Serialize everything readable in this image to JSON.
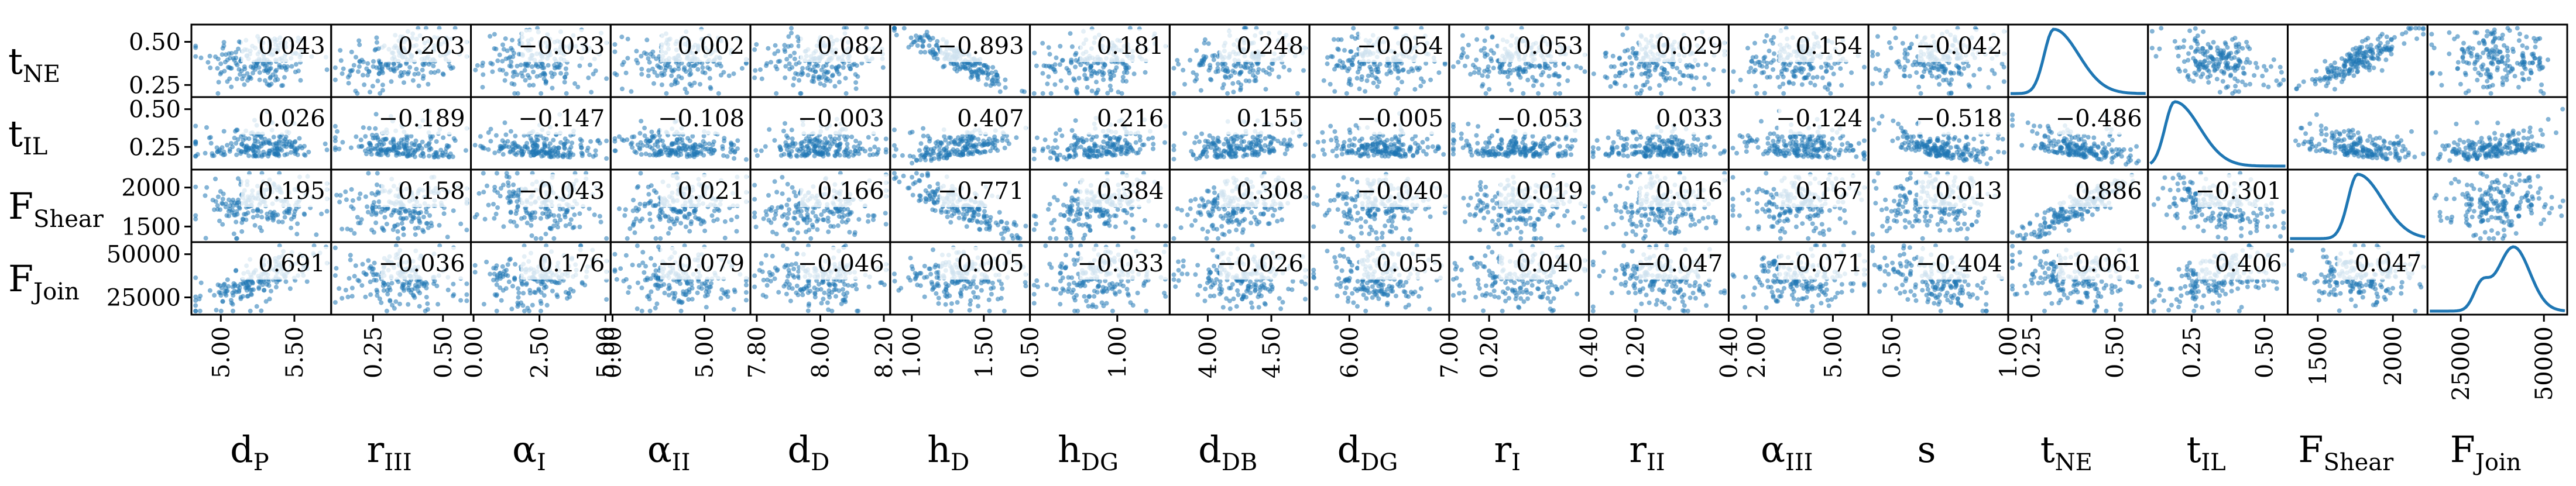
{
  "chart_data": {
    "type": "scatter",
    "kind": "scatter-matrix",
    "colors": {
      "points": "#1f77b4",
      "kde": "#1f77b4",
      "frame": "#000000",
      "label_box": "#ffffff"
    },
    "x_vars": [
      {
        "key": "dP",
        "base": "d",
        "sub": "P",
        "ticks": [
          5.0,
          5.5
        ],
        "tick_labels": [
          "5.00",
          "5.50"
        ],
        "range": [
          4.8,
          5.75
        ]
      },
      {
        "key": "rIII",
        "base": "r",
        "sub": "III",
        "ticks": [
          0.25,
          0.5
        ],
        "tick_labels": [
          "0.25",
          "0.50"
        ],
        "range": [
          0.1,
          0.6
        ]
      },
      {
        "key": "aI",
        "base": "α",
        "sub": "I",
        "ticks": [
          0.0,
          2.5,
          5.0
        ],
        "tick_labels": [
          "0.00",
          "2.50",
          "5.00"
        ],
        "range": [
          -0.1,
          5.2
        ]
      },
      {
        "key": "aII",
        "base": "α",
        "sub": "II",
        "ticks": [
          0.0,
          5.0
        ],
        "tick_labels": [
          "0.00",
          "5.00"
        ],
        "range": [
          -0.1,
          7.5
        ]
      },
      {
        "key": "dD",
        "base": "d",
        "sub": "D",
        "ticks": [
          7.8,
          8.0,
          8.2
        ],
        "tick_labels": [
          "7.80",
          "8.00",
          "8.20"
        ],
        "range": [
          7.78,
          8.22
        ]
      },
      {
        "key": "hD",
        "base": "h",
        "sub": "D",
        "ticks": [
          1.0,
          1.5
        ],
        "tick_labels": [
          "1.00",
          "1.50"
        ],
        "range": [
          0.85,
          1.82
        ]
      },
      {
        "key": "hDG",
        "base": "h",
        "sub": "DG",
        "ticks": [
          0.5,
          1.0
        ],
        "tick_labels": [
          "0.50",
          "1.00"
        ],
        "range": [
          0.5,
          1.3
        ]
      },
      {
        "key": "dDB",
        "base": "d",
        "sub": "DB",
        "ticks": [
          4.0,
          4.5
        ],
        "tick_labels": [
          "4.00",
          "4.50"
        ],
        "range": [
          3.7,
          4.8
        ]
      },
      {
        "key": "dDG",
        "base": "d",
        "sub": "DG",
        "ticks": [
          6.0,
          7.0
        ],
        "tick_labels": [
          "6.00",
          "7.00"
        ],
        "range": [
          5.6,
          7.0
        ]
      },
      {
        "key": "rI",
        "base": "r",
        "sub": "I",
        "ticks": [
          0.2,
          0.4
        ],
        "tick_labels": [
          "0.20",
          "0.40"
        ],
        "range": [
          0.12,
          0.4
        ]
      },
      {
        "key": "rII",
        "base": "r",
        "sub": "II",
        "ticks": [
          0.2,
          0.4
        ],
        "tick_labels": [
          "0.20",
          "0.40"
        ],
        "range": [
          0.1,
          0.4
        ]
      },
      {
        "key": "aIII",
        "base": "α",
        "sub": "III",
        "ticks": [
          2.0,
          5.0
        ],
        "tick_labels": [
          "2.00",
          "5.00"
        ],
        "range": [
          0.9,
          6.4
        ]
      },
      {
        "key": "s",
        "base": "s",
        "sub": "",
        "ticks": [
          0.5,
          1.0
        ],
        "tick_labels": [
          "0.50",
          "1.00"
        ],
        "range": [
          0.4,
          1.0
        ]
      },
      {
        "key": "tNE",
        "base": "t",
        "sub": "NE",
        "ticks": [
          0.25,
          0.5
        ],
        "tick_labels": [
          "0.25",
          "0.50"
        ],
        "range": [
          0.18,
          0.6
        ]
      },
      {
        "key": "tIL",
        "base": "t",
        "sub": "IL",
        "ticks": [
          0.25,
          0.5
        ],
        "tick_labels": [
          "0.25",
          "0.50"
        ],
        "range": [
          0.1,
          0.58
        ]
      },
      {
        "key": "FShear",
        "base": "F",
        "sub": "Shear",
        "ticks": [
          1500,
          2000
        ],
        "tick_labels": [
          "1500",
          "2000"
        ],
        "range": [
          1300,
          2230
        ]
      },
      {
        "key": "FJoin",
        "base": "F",
        "sub": "Join",
        "ticks": [
          25000,
          50000
        ],
        "tick_labels": [
          "25000",
          "50000"
        ],
        "range": [
          15000,
          57000
        ]
      }
    ],
    "y_vars": [
      {
        "key": "tNE",
        "base": "t",
        "sub": "NE",
        "ticks": [
          0.25,
          0.5
        ],
        "tick_labels": [
          "0.25",
          "0.50"
        ],
        "range": [
          0.18,
          0.6
        ]
      },
      {
        "key": "tIL",
        "base": "t",
        "sub": "IL",
        "ticks": [
          0.25,
          0.5
        ],
        "tick_labels": [
          "0.25",
          "0.50"
        ],
        "range": [
          0.1,
          0.58
        ]
      },
      {
        "key": "FShear",
        "base": "F",
        "sub": "Shear",
        "ticks": [
          1500,
          2000
        ],
        "tick_labels": [
          "1500",
          "2000"
        ],
        "range": [
          1300,
          2230
        ]
      },
      {
        "key": "FJoin",
        "base": "F",
        "sub": "Join",
        "ticks": [
          25000,
          50000
        ],
        "tick_labels": [
          "25000",
          "50000"
        ],
        "range": [
          15000,
          57000
        ]
      }
    ],
    "correlations": [
      [
        "0.043",
        "0.203",
        "−0.033",
        "0.002",
        "0.082",
        "−0.893",
        "0.181",
        "0.248",
        "−0.054",
        "0.053",
        "0.029",
        "0.154",
        "−0.042",
        null,
        "",
        "",
        ""
      ],
      [
        "0.026",
        "−0.189",
        "−0.147",
        "−0.108",
        "−0.003",
        "0.407",
        "0.216",
        "0.155",
        "−0.005",
        "−0.053",
        "0.033",
        "−0.124",
        "−0.518",
        "−0.486",
        null,
        "",
        ""
      ],
      [
        "0.195",
        "0.158",
        "−0.043",
        "0.021",
        "0.166",
        "−0.771",
        "0.384",
        "0.308",
        "−0.040",
        "0.019",
        "0.016",
        "0.167",
        "0.013",
        "0.886",
        "−0.301",
        null,
        ""
      ],
      [
        "0.691",
        "−0.036",
        "0.176",
        "−0.079",
        "−0.046",
        "0.005",
        "−0.033",
        "−0.026",
        "0.055",
        "0.040",
        "−0.047",
        "−0.071",
        "−0.404",
        "−0.061",
        "0.406",
        "0.047",
        null
      ]
    ],
    "diagonal": "kde",
    "upper_panels": "scatter",
    "grid": false,
    "legend": "none"
  }
}
